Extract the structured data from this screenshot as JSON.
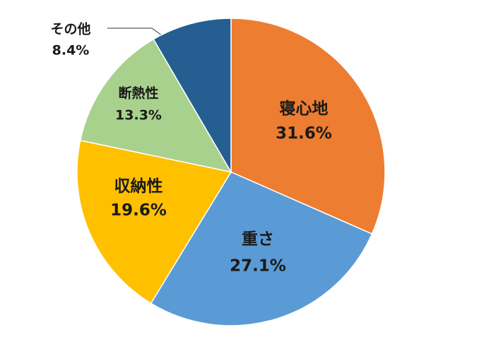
{
  "chart_data": {
    "type": "pie",
    "categories": [
      "寝心地",
      "重さ",
      "収納性",
      "断熱性",
      "その他"
    ],
    "values": [
      31.6,
      27.1,
      19.6,
      13.3,
      8.4
    ],
    "value_labels": [
      "31.6%",
      "27.1%",
      "19.6%",
      "13.3%",
      "8.4%"
    ],
    "colors": [
      "#ED7D31",
      "#5B9BD5",
      "#FFC000",
      "#A9D18E",
      "#255E91"
    ],
    "start_angle": 0,
    "direction": "clockwise"
  }
}
